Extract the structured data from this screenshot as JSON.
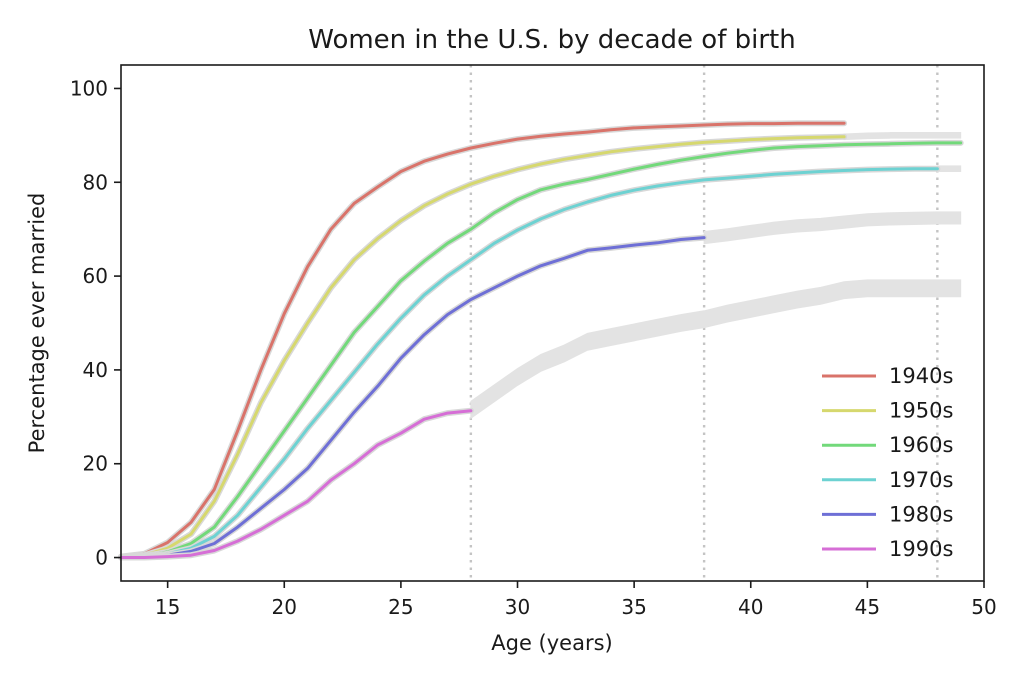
{
  "chart_data": {
    "type": "line",
    "title": "Women in the U.S. by decade of birth",
    "xlabel": "Age (years)",
    "ylabel": "Percentage ever married",
    "xlim": [
      13,
      50
    ],
    "ylim": [
      -5,
      105
    ],
    "xticks": [
      15,
      20,
      25,
      30,
      35,
      40,
      45,
      50
    ],
    "yticks": [
      0,
      20,
      40,
      60,
      80,
      100
    ],
    "grid": false,
    "legend_position": "lower right",
    "reference_lines_x": [
      28,
      38,
      48
    ],
    "series": [
      {
        "name": "1940s",
        "color": "#d9736a",
        "x": [
          13,
          14,
          15,
          16,
          17,
          18,
          19,
          20,
          21,
          22,
          23,
          24,
          25,
          26,
          27,
          28,
          29,
          30,
          31,
          32,
          33,
          34,
          35,
          36,
          37,
          38,
          39,
          40,
          41,
          42,
          43,
          44
        ],
        "y": [
          0.2,
          0.8,
          3.2,
          7.5,
          14.5,
          27,
          40,
          52,
          62,
          70,
          75.5,
          79,
          82.3,
          84.5,
          86,
          87.3,
          88.3,
          89.2,
          89.8,
          90.3,
          90.7,
          91.2,
          91.6,
          91.8,
          92,
          92.2,
          92.4,
          92.5,
          92.5,
          92.6,
          92.6,
          92.6
        ]
      },
      {
        "name": "1950s",
        "color": "#d6d86e",
        "x": [
          13,
          14,
          15,
          16,
          17,
          18,
          19,
          20,
          21,
          22,
          23,
          24,
          25,
          26,
          27,
          28,
          29,
          30,
          31,
          32,
          33,
          34,
          35,
          36,
          37,
          38,
          39,
          40,
          41,
          42,
          43,
          44
        ],
        "y": [
          0.1,
          0.5,
          2,
          5,
          12,
          22,
          33,
          42,
          50,
          57.5,
          63.5,
          68,
          71.8,
          75,
          77.5,
          79.6,
          81.3,
          82.7,
          83.9,
          84.9,
          85.7,
          86.5,
          87.1,
          87.6,
          88.1,
          88.5,
          88.8,
          89.1,
          89.3,
          89.5,
          89.6,
          89.7
        ]
      },
      {
        "name": "1960s",
        "color": "#72d97a",
        "x": [
          13,
          14,
          15,
          16,
          17,
          18,
          19,
          20,
          21,
          22,
          23,
          24,
          25,
          26,
          27,
          28,
          29,
          30,
          31,
          32,
          33,
          34,
          35,
          36,
          37,
          38,
          39,
          40,
          41,
          42,
          43,
          44,
          45,
          46,
          47,
          48,
          49
        ],
        "y": [
          0.1,
          0.3,
          1.2,
          3,
          6.5,
          13,
          20,
          27,
          34,
          41,
          48,
          53.5,
          59,
          63.2,
          67,
          70,
          73.5,
          76.3,
          78.4,
          79.6,
          80.6,
          81.7,
          82.8,
          83.8,
          84.7,
          85.5,
          86.2,
          86.8,
          87.3,
          87.6,
          87.8,
          88,
          88.1,
          88.2,
          88.3,
          88.4,
          88.4
        ]
      },
      {
        "name": "1970s",
        "color": "#6dd2d2",
        "x": [
          13,
          14,
          15,
          16,
          17,
          18,
          19,
          20,
          21,
          22,
          23,
          24,
          25,
          26,
          27,
          28,
          29,
          30,
          31,
          32,
          33,
          34,
          35,
          36,
          37,
          38,
          39,
          40,
          41,
          42,
          43,
          44,
          45,
          46,
          47,
          48
        ],
        "y": [
          0,
          0.2,
          0.8,
          2,
          4.5,
          9,
          15,
          21,
          27.5,
          33.5,
          39.5,
          45.5,
          51,
          56,
          60,
          63.5,
          67,
          69.8,
          72.2,
          74.2,
          75.8,
          77.2,
          78.3,
          79.2,
          79.9,
          80.5,
          80.9,
          81.3,
          81.7,
          82,
          82.3,
          82.5,
          82.7,
          82.8,
          82.9,
          82.9
        ]
      },
      {
        "name": "1980s",
        "color": "#6e6fd6",
        "x": [
          13,
          14,
          15,
          16,
          17,
          18,
          19,
          20,
          21,
          22,
          23,
          24,
          25,
          26,
          27,
          28,
          29,
          30,
          31,
          32,
          33,
          34,
          35,
          36,
          37,
          38
        ],
        "y": [
          0,
          0.1,
          0.5,
          1.3,
          3,
          6.5,
          10.5,
          14.5,
          19,
          25,
          31,
          36.5,
          42.5,
          47.5,
          51.8,
          55,
          57.5,
          60,
          62.2,
          63.8,
          65.5,
          66,
          66.6,
          67.1,
          67.8,
          68.2
        ]
      },
      {
        "name": "1990s",
        "color": "#d66ed6",
        "x": [
          13,
          14,
          15,
          16,
          17,
          18,
          19,
          20,
          21,
          22,
          23,
          24,
          25,
          26,
          27,
          28
        ],
        "y": [
          0,
          0,
          0.2,
          0.5,
          1.5,
          3.5,
          6,
          9,
          12,
          16.5,
          20,
          24,
          26.5,
          29.5,
          30.8,
          31.3
        ]
      }
    ],
    "prediction_bands": [
      {
        "color": "#e3e3e3",
        "x": [
          38,
          39,
          40,
          41,
          42,
          43,
          44,
          45,
          46,
          47,
          48,
          49
        ],
        "y": [
          68.2,
          68.8,
          69.5,
          70.2,
          70.7,
          71,
          71.5,
          72,
          72.2,
          72.3,
          72.4,
          72.4
        ],
        "halfwidth": 1.3
      },
      {
        "color": "#e3e3e3",
        "x": [
          28,
          29,
          30,
          31,
          32,
          33,
          34,
          35,
          36,
          37,
          38,
          39,
          40,
          41,
          42,
          43,
          44,
          45,
          46,
          47,
          48,
          49
        ],
        "y": [
          31.5,
          35,
          38.5,
          41.5,
          43.5,
          46,
          47,
          48,
          49,
          50,
          50.8,
          52,
          53,
          54,
          55,
          55.8,
          57,
          57.4,
          57.4,
          57.4,
          57.4,
          57.4
        ],
        "halfwidth": 1.8
      },
      {
        "color": "#e3e3e3",
        "x": [
          44,
          45,
          46,
          47,
          48,
          49
        ],
        "y": [
          89.7,
          89.9,
          90,
          90,
          90,
          90
        ],
        "halfwidth": 0.6
      },
      {
        "color": "#e3e3e3",
        "x": [
          48,
          49
        ],
        "y": [
          82.9,
          82.9
        ],
        "halfwidth": 0.6
      }
    ]
  }
}
